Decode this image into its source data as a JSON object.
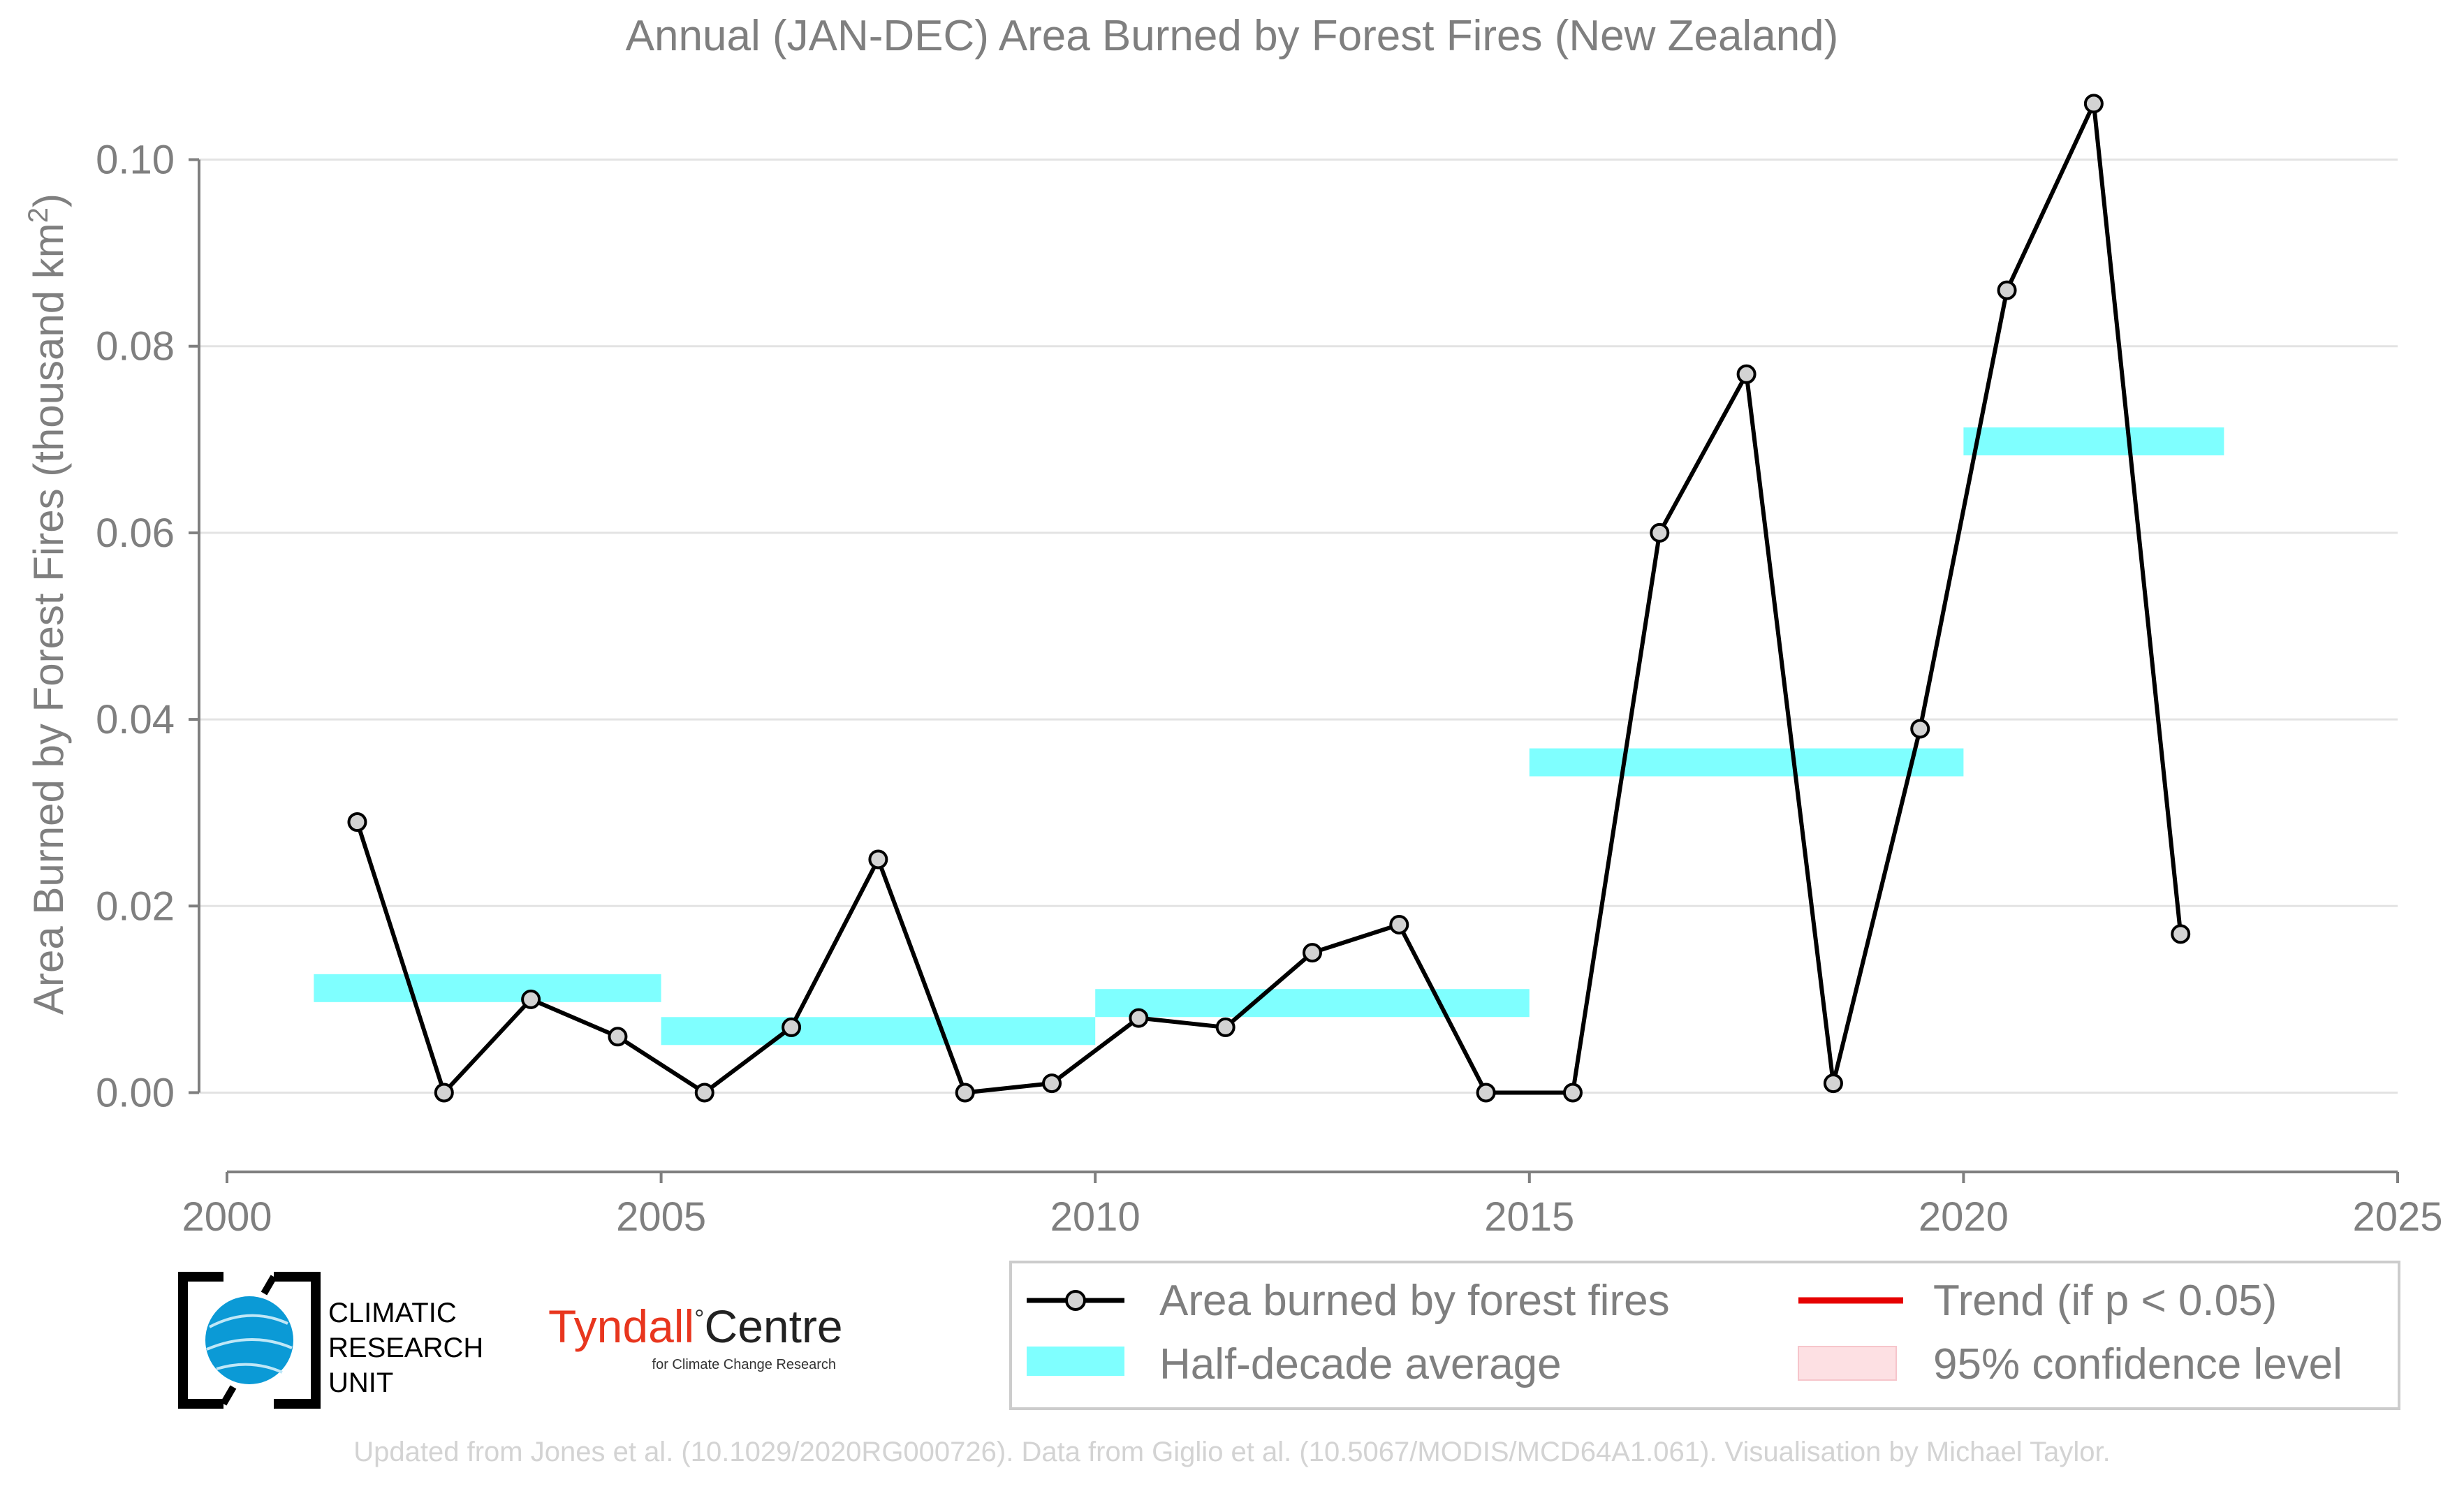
{
  "chart_data": {
    "type": "line",
    "title": "Annual (JAN-DEC) Area Burned by Forest Fires (New Zealand)",
    "ylabel_main": "Area Burned by Forest Fires (thousand km",
    "ylabel_sup": "2",
    "ylabel_close": ")",
    "xlim": [
      2000,
      2025
    ],
    "ylim": [
      -0.0085,
      0.1085
    ],
    "x_ticks": [
      2000,
      2005,
      2010,
      2015,
      2020,
      2025
    ],
    "x_tick_labels": [
      "2000",
      "2005",
      "2010",
      "2015",
      "2020",
      "2025"
    ],
    "y_ticks": [
      0,
      0.02,
      0.04,
      0.06,
      0.08,
      0.1
    ],
    "y_tick_labels": [
      "0.00",
      "0.02",
      "0.04",
      "0.06",
      "0.08",
      "0.10"
    ],
    "grid": "horizontal",
    "series": [
      {
        "name": "Area burned by forest fires",
        "color": "#000000",
        "marker_fill": "#d3d3d3",
        "x": [
          2001.5,
          2002.5,
          2003.5,
          2004.5,
          2005.5,
          2006.5,
          2007.5,
          2008.5,
          2009.5,
          2010.5,
          2011.5,
          2012.5,
          2013.5,
          2014.5,
          2015.5,
          2016.5,
          2017.5,
          2018.5,
          2019.5,
          2020.5,
          2021.5,
          2022.5
        ],
        "y": [
          0.029,
          0.0,
          0.01,
          0.006,
          0.0,
          0.007,
          0.025,
          0.0,
          0.001,
          0.008,
          0.007,
          0.015,
          0.018,
          0.0,
          0.0,
          0.06,
          0.077,
          0.001,
          0.039,
          0.086,
          0.106,
          0.017
        ]
      }
    ],
    "half_decade_averages": {
      "name": "Half-decade average",
      "color": "#7fffff",
      "segments": [
        {
          "x0": 2001,
          "x1": 2005,
          "y": 0.0112
        },
        {
          "x0": 2005,
          "x1": 2010,
          "y": 0.0066
        },
        {
          "x0": 2010,
          "x1": 2015,
          "y": 0.0096
        },
        {
          "x0": 2015,
          "x1": 2020,
          "y": 0.0354
        },
        {
          "x0": 2020,
          "x1": 2023,
          "y": 0.0698
        }
      ]
    },
    "legend": {
      "placement": "bottom-right",
      "entries": [
        {
          "label": "Area burned by forest fires",
          "kind": "line-marker",
          "color": "#000000"
        },
        {
          "label": "Trend (if p < 0.05)",
          "kind": "line",
          "color": "#e60000"
        },
        {
          "label": "Half-decade average",
          "kind": "band",
          "color": "#7fffff"
        },
        {
          "label": "95% confidence level",
          "kind": "fill",
          "color": "#fde0e3"
        }
      ]
    }
  },
  "logos": {
    "cru_line1": "CLIMATIC",
    "cru_line2": "RESEARCH",
    "cru_line3": "UNIT",
    "tyndall_word": "Tyndall",
    "tyndall_degree": "°",
    "tyndall_centre": "Centre",
    "tyndall_sub": "for Climate Change Research",
    "tyndall_color": "#e8361e"
  },
  "footer": "Updated from Jones et al. (10.1029/2020RG000726). Data from Giglio et al. (10.5067/MODIS/MCD64A1.061). Visualisation by Michael Taylor."
}
